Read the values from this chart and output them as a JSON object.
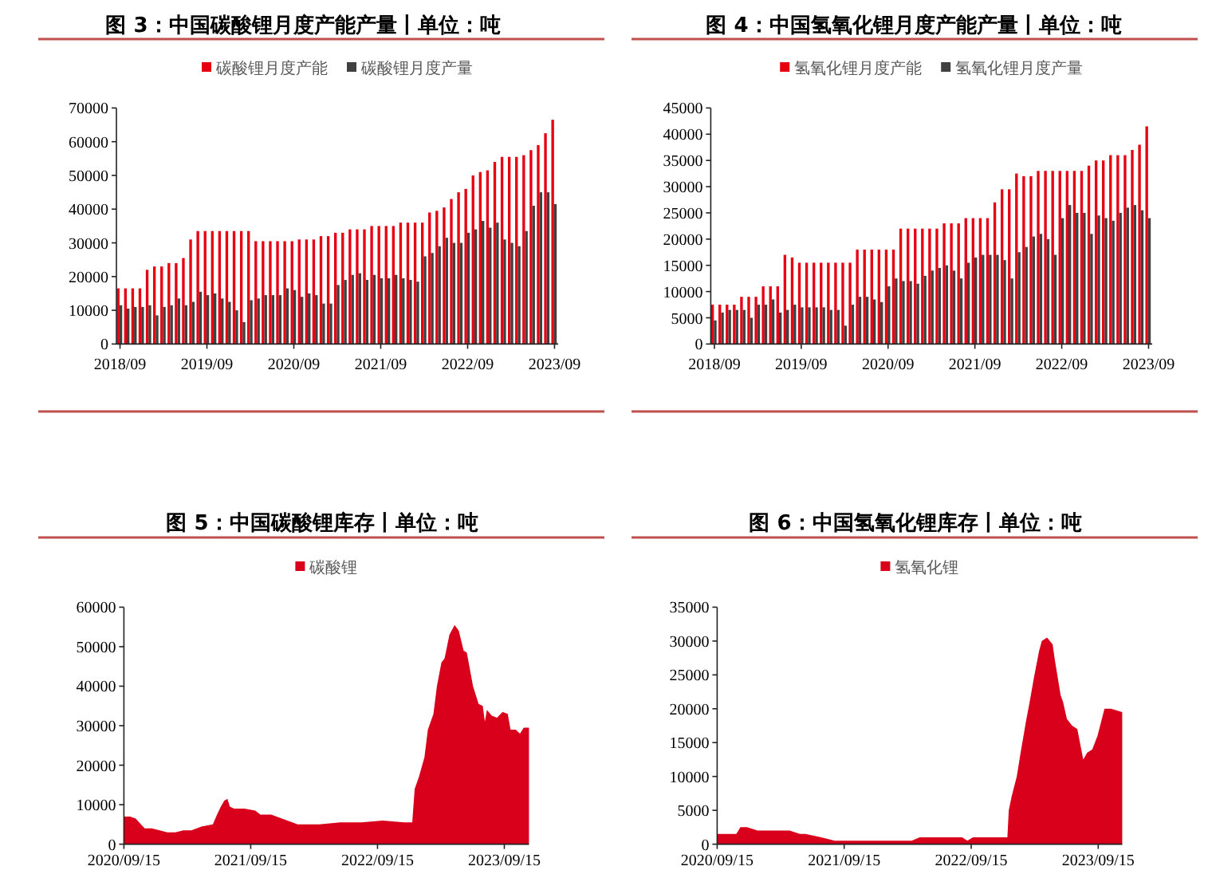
{
  "chart_data": [
    {
      "type": "bar",
      "title": "图 3：中国碳酸锂月度产能产量丨单位：吨",
      "categories": [
        "2018/09",
        null,
        null,
        null,
        null,
        null,
        null,
        null,
        null,
        null,
        null,
        null,
        "2019/09",
        null,
        null,
        null,
        null,
        null,
        null,
        null,
        null,
        null,
        null,
        null,
        "2020/09",
        null,
        null,
        null,
        null,
        null,
        null,
        null,
        null,
        null,
        null,
        null,
        "2021/09",
        null,
        null,
        null,
        null,
        null,
        null,
        null,
        null,
        null,
        null,
        null,
        "2022/09",
        null,
        null,
        null,
        null,
        null,
        null,
        null,
        null,
        null,
        null,
        null,
        "2023/09"
      ],
      "series": [
        {
          "name": "碳酸锂月度产能",
          "color": "#e60012",
          "values": [
            16500,
            16500,
            16500,
            16500,
            22000,
            23000,
            23000,
            24000,
            24000,
            25500,
            31000,
            33500,
            33500,
            33500,
            33500,
            33500,
            33500,
            33500,
            33500,
            30500,
            30500,
            30500,
            30500,
            30500,
            30500,
            31000,
            31000,
            31000,
            32000,
            32000,
            33000,
            33000,
            34000,
            34000,
            34000,
            35000,
            35000,
            35000,
            35000,
            36000,
            36000,
            36000,
            36000,
            39000,
            39500,
            40500,
            43000,
            45000,
            46000,
            50000,
            51000,
            51500,
            54000,
            55500,
            55500,
            55500,
            56000,
            57500,
            59000,
            62500,
            66500
          ]
        },
        {
          "name": "碳酸锂月度产量",
          "color": "#404040",
          "values": [
            11500,
            10500,
            11000,
            11000,
            11500,
            8500,
            11000,
            11500,
            13500,
            11500,
            12500,
            15500,
            14500,
            15000,
            13500,
            12500,
            10000,
            6500,
            13000,
            13500,
            14500,
            14500,
            14500,
            16500,
            16000,
            14000,
            15000,
            14500,
            12000,
            12000,
            17500,
            19000,
            20500,
            21000,
            19000,
            20500,
            19500,
            19500,
            20500,
            19500,
            19000,
            18500,
            26000,
            27000,
            29000,
            31500,
            30000,
            30000,
            33000,
            34000,
            36500,
            34500,
            36000,
            31000,
            30000,
            29000,
            33500,
            41000,
            45000,
            45000,
            41500
          ]
        }
      ],
      "ylim": [
        0,
        70000
      ],
      "yticks": [
        0,
        10000,
        20000,
        30000,
        40000,
        50000,
        60000,
        70000
      ],
      "legend": "top"
    },
    {
      "type": "bar",
      "title": "图 4：中国氢氧化锂月度产能产量丨单位：吨",
      "categories": [
        "2018/09",
        null,
        null,
        null,
        null,
        null,
        null,
        null,
        null,
        null,
        null,
        null,
        "2019/09",
        null,
        null,
        null,
        null,
        null,
        null,
        null,
        null,
        null,
        null,
        null,
        "2020/09",
        null,
        null,
        null,
        null,
        null,
        null,
        null,
        null,
        null,
        null,
        null,
        "2021/09",
        null,
        null,
        null,
        null,
        null,
        null,
        null,
        null,
        null,
        null,
        null,
        "2022/09",
        null,
        null,
        null,
        null,
        null,
        null,
        null,
        null,
        null,
        null,
        null,
        "2023/09"
      ],
      "series": [
        {
          "name": "氢氧化锂月度产能",
          "color": "#e60012",
          "values": [
            7500,
            7500,
            7500,
            7500,
            9000,
            9000,
            9000,
            11000,
            11000,
            11000,
            17000,
            16500,
            15500,
            15500,
            15500,
            15500,
            15500,
            15500,
            15500,
            15500,
            18000,
            18000,
            18000,
            18000,
            18000,
            18000,
            22000,
            22000,
            22000,
            22000,
            22000,
            22000,
            23000,
            23000,
            23000,
            24000,
            24000,
            24000,
            24000,
            27000,
            29500,
            29500,
            32500,
            32000,
            32000,
            33000,
            33000,
            33000,
            33000,
            33000,
            33000,
            33000,
            34000,
            35000,
            35000,
            36000,
            36000,
            36000,
            37000,
            38000,
            41500
          ]
        },
        {
          "name": "氢氧化锂月度产量",
          "color": "#404040",
          "values": [
            4500,
            6000,
            6500,
            6500,
            6500,
            5000,
            7500,
            7500,
            8500,
            6000,
            6500,
            7500,
            7000,
            7000,
            7000,
            7000,
            6500,
            6500,
            3500,
            7500,
            9000,
            9000,
            8500,
            8000,
            11000,
            12500,
            12000,
            12000,
            11500,
            13000,
            14000,
            14500,
            15000,
            14000,
            12500,
            15500,
            16500,
            17000,
            17000,
            17000,
            16000,
            12500,
            17500,
            18500,
            20500,
            21000,
            20000,
            17000,
            24000,
            26500,
            25000,
            25000,
            21000,
            24500,
            24000,
            23500,
            25000,
            26000,
            26500,
            25500,
            24000
          ]
        }
      ],
      "ylim": [
        0,
        45000
      ],
      "yticks": [
        0,
        5000,
        10000,
        15000,
        20000,
        25000,
        30000,
        35000,
        40000,
        45000
      ],
      "legend": "top"
    },
    {
      "type": "area",
      "title": "图 5：中国碳酸锂库存丨单位：吨",
      "x": [
        "2020-09-15",
        "2020-10-03",
        "2020-10-19",
        "2020-11-03",
        "2020-11-14",
        "2020-12-04",
        "2020-12-27",
        "2021-01-18",
        "2021-02-10",
        "2021-03-05",
        "2021-03-28",
        "2021-04-28",
        "2021-05-29",
        "2021-06-10",
        "2021-06-21",
        "2021-07-01",
        "2021-07-10",
        "2021-07-17",
        "2021-07-29",
        "2021-08-28",
        "2021-09-28",
        "2021-10-13",
        "2021-11-13",
        "2021-12-14",
        "2022-01-13",
        "2022-01-28",
        "2022-03-31",
        "2022-05-31",
        "2022-07-31",
        "2022-09-30",
        "2022-12-01",
        "2022-12-24",
        "2022-12-31",
        "2023-01-12",
        "2023-01-28",
        "2023-02-07",
        "2023-02-23",
        "2023-03-05",
        "2023-03-18",
        "2023-03-27",
        "2023-04-10",
        "2023-04-25",
        "2023-05-07",
        "2023-05-21",
        "2023-05-30",
        "2023-06-17",
        "2023-07-03",
        "2023-07-15",
        "2023-07-21",
        "2023-07-27",
        "2023-08-10",
        "2023-08-25",
        "2023-09-10",
        "2023-09-25",
        "2023-10-03",
        "2023-10-18",
        "2023-10-30",
        "2023-11-10",
        "2023-11-25"
      ],
      "series": [
        {
          "name": "碳酸锂",
          "color": "#d9001b",
          "values": [
            7000,
            7000,
            6500,
            5000,
            4000,
            4000,
            3500,
            3000,
            3000,
            3500,
            3500,
            4500,
            5000,
            7500,
            9500,
            11000,
            11500,
            9500,
            9000,
            9000,
            8500,
            7500,
            7500,
            6500,
            5500,
            5000,
            5000,
            5500,
            5500,
            6000,
            5500,
            5500,
            14000,
            17000,
            22000,
            29000,
            33000,
            40000,
            46000,
            47000,
            53000,
            55500,
            54000,
            49000,
            48500,
            40000,
            35500,
            35000,
            31000,
            34000,
            32500,
            32000,
            33500,
            33000,
            29000,
            29000,
            28000,
            29500,
            29500
          ]
        }
      ],
      "xlim": [
        "2020-09-15",
        "2023-11-25"
      ],
      "xticks": [
        {
          "value": "2020-09-15",
          "label": "2020/09/15"
        },
        {
          "value": "2021-09-15",
          "label": "2021/09/15"
        },
        {
          "value": "2022-09-15",
          "label": "2022/09/15"
        },
        {
          "value": "2023-09-15",
          "label": "2023/09/15"
        }
      ],
      "ylim": [
        0,
        60000
      ],
      "yticks": [
        0,
        10000,
        20000,
        30000,
        40000,
        50000,
        60000
      ],
      "legend": "top"
    },
    {
      "type": "area",
      "title": "图 6：中国氢氧化锂库存丨单位：吨",
      "x": [
        "2020-09-15",
        "2020-10-09",
        "2020-11-01",
        "2020-11-09",
        "2020-11-21",
        "2020-12-10",
        "2021-01-09",
        "2021-01-24",
        "2021-02-12",
        "2021-03-11",
        "2021-04-11",
        "2021-05-11",
        "2021-05-27",
        "2021-07-11",
        "2021-08-19",
        "2021-09-10",
        "2021-10-11",
        "2021-11-11",
        "2021-12-26",
        "2022-02-10",
        "2022-03-28",
        "2022-04-20",
        "2022-05-28",
        "2022-06-28",
        "2022-08-05",
        "2022-08-20",
        "2022-09-04",
        "2022-09-20",
        "2022-10-28",
        "2022-11-27",
        "2022-12-20",
        "2022-12-28",
        "2023-01-01",
        "2023-01-09",
        "2023-01-24",
        "2023-02-04",
        "2023-02-19",
        "2023-03-02",
        "2023-03-14",
        "2023-03-29",
        "2023-04-06",
        "2023-04-21",
        "2023-05-07",
        "2023-05-14",
        "2023-05-30",
        "2023-06-06",
        "2023-06-17",
        "2023-07-02",
        "2023-07-17",
        "2023-08-03",
        "2023-08-14",
        "2023-08-29",
        "2023-09-13",
        "2023-10-03",
        "2023-10-22",
        "2023-11-23"
      ],
      "series": [
        {
          "name": "氢氧化锂",
          "color": "#d9001b",
          "values": [
            1500,
            1500,
            1500,
            1500,
            2500,
            2500,
            2000,
            2000,
            2000,
            2000,
            2000,
            1500,
            1500,
            1000,
            500,
            500,
            500,
            500,
            500,
            500,
            500,
            1000,
            1000,
            1000,
            1000,
            1000,
            500,
            1000,
            1000,
            1000,
            1000,
            1000,
            5000,
            7000,
            10000,
            13500,
            18000,
            21000,
            24500,
            28500,
            30000,
            30500,
            29500,
            27000,
            22000,
            21000,
            18500,
            17500,
            17000,
            12500,
            13500,
            14000,
            16000,
            20000,
            20000,
            19500
          ]
        }
      ],
      "xlim": [
        "2020-09-15",
        "2023-11-23"
      ],
      "xticks": [
        {
          "value": "2020-09-15",
          "label": "2020/09/15"
        },
        {
          "value": "2021-09-15",
          "label": "2021/09/15"
        },
        {
          "value": "2022-09-15",
          "label": "2022/09/15"
        },
        {
          "value": "2023-09-15",
          "label": "2023/09/15"
        }
      ],
      "ylim": [
        0,
        35000
      ],
      "yticks": [
        0,
        5000,
        10000,
        15000,
        20000,
        25000,
        30000,
        35000
      ],
      "legend": "top"
    }
  ]
}
